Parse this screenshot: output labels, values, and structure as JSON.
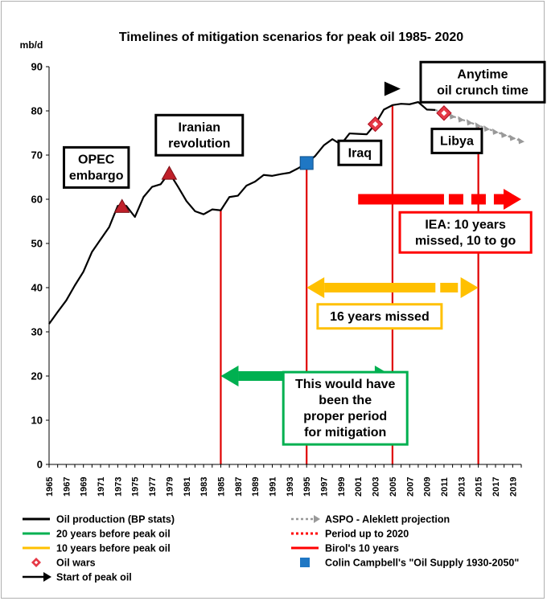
{
  "chart_data": {
    "type": "line",
    "title": "Timelines of mitigation scenarios for peak oil 1985- 2020",
    "ylabel": "mb/d",
    "xlabel": "",
    "ylim": [
      0,
      90
    ],
    "xlim": [
      1965,
      2020
    ],
    "y_ticks": [
      "0",
      "10",
      "20",
      "30",
      "40",
      "50",
      "60",
      "70",
      "80",
      "90"
    ],
    "x_ticks": [
      "1965",
      "1967",
      "1969",
      "1971",
      "1973",
      "1975",
      "1977",
      "1979",
      "1981",
      "1983",
      "1985",
      "1987",
      "1989",
      "1991",
      "1993",
      "1995",
      "1997",
      "1999",
      "2001",
      "2003",
      "2005",
      "2007",
      "2009",
      "2011",
      "2013",
      "2015",
      "2017",
      "2019"
    ],
    "grid": false,
    "series": [
      {
        "name": "Oil production (BP stats)",
        "color": "#000000",
        "x": [
          1965,
          1966,
          1967,
          1968,
          1969,
          1970,
          1971,
          1972,
          1973,
          1974,
          1975,
          1976,
          1977,
          1978,
          1979,
          1980,
          1981,
          1982,
          1983,
          1984,
          1985,
          1986,
          1987,
          1988,
          1989,
          1990,
          1991,
          1992,
          1993,
          1994,
          1995,
          1996,
          1997,
          1998,
          1999,
          2000,
          2001,
          2002,
          2003,
          2004,
          2005,
          2006,
          2007,
          2008,
          2009,
          2010
        ],
        "values": [
          31.8,
          34.5,
          37.1,
          40.5,
          43.6,
          48.1,
          50.9,
          53.7,
          58.5,
          58.5,
          56.0,
          60.5,
          62.8,
          63.4,
          66.0,
          62.9,
          59.6,
          57.3,
          56.6,
          57.7,
          57.5,
          60.5,
          60.8,
          63.1,
          64.0,
          65.5,
          65.3,
          65.7,
          66.0,
          67.0,
          68.2,
          69.8,
          72.2,
          73.6,
          72.4,
          74.9,
          74.8,
          74.7,
          77.0,
          80.3,
          81.3,
          81.6,
          81.5,
          82.0,
          80.3,
          80.2
        ]
      },
      {
        "name": "ASPO - Aleklett projection",
        "color": "#999999",
        "x": [
          2010,
          2011,
          2012,
          2013,
          2014,
          2015,
          2016,
          2017,
          2018,
          2019,
          2020
        ],
        "values": [
          80.2,
          79.5,
          78.8,
          78.1,
          77.4,
          76.7,
          76.0,
          75.3,
          74.6,
          73.9,
          73.2
        ]
      }
    ],
    "oil_wars": [
      {
        "x": 1973.5,
        "y": 58.3
      },
      {
        "x": 1979,
        "y": 65.8
      },
      {
        "x": 2003,
        "y": 77.0
      },
      {
        "x": 2011,
        "y": 79.5
      }
    ],
    "start_of_peak_oil": {
      "x": 2005,
      "y": 85
    },
    "colin_campbell": {
      "x": 1995,
      "y": 68.2
    },
    "vertical_lines": [
      1985,
      1995,
      2005,
      2015
    ],
    "arrows": [
      {
        "name": "20 years before peak oil",
        "color": "#00b050",
        "from": 1985,
        "to": 2005,
        "y": 20,
        "dashed_from": null
      },
      {
        "name": "10 years before peak oil",
        "color": "#ffc000",
        "from": 1995,
        "to": 2015,
        "y": 40,
        "dashed_from": 2010
      },
      {
        "name": "Birol's 10 years",
        "color": "#ff0000",
        "from": 2001,
        "to": 2020,
        "y": 60,
        "dashed_from": 2011
      }
    ],
    "annotations": [
      {
        "text": [
          "OPEC",
          "embargo"
        ],
        "x": 1970.5,
        "y": 67.2,
        "border": "#000000"
      },
      {
        "text": [
          "Iranian",
          "revolution"
        ],
        "x": 1982.5,
        "y": 74.5,
        "border": "#000000"
      },
      {
        "text": [
          "Iraq"
        ],
        "x": 2001.2,
        "y": 70.5,
        "border": "#000000"
      },
      {
        "text": [
          "Libya"
        ],
        "x": 2012.5,
        "y": 73.2,
        "border": "#000000"
      },
      {
        "text": [
          "Anytime",
          "oil crunch time"
        ],
        "x": 2015.5,
        "y": 86.5,
        "border": "#000000"
      },
      {
        "text": [
          "IEA: 10 years",
          "missed, 10 to go"
        ],
        "x": 2013.5,
        "y": 52.5,
        "border": "#ff0000"
      },
      {
        "text": [
          "16 years missed"
        ],
        "x": 2003.5,
        "y": 33.5,
        "border": "#ffc000"
      },
      {
        "text": [
          "This would have",
          "been the",
          "proper period",
          "for mitigation"
        ],
        "x": 1999.5,
        "y": 12.7,
        "border": "#00b050"
      }
    ],
    "legend": {
      "position": "bottom",
      "items": [
        {
          "label": "Oil production (BP stats)",
          "marker": "line",
          "color": "#000000"
        },
        {
          "label": "ASPO - Aleklett projection",
          "marker": "dotted-arrow",
          "color": "#999999"
        },
        {
          "label": "20 years before peak oil",
          "marker": "line",
          "color": "#00b050"
        },
        {
          "label": "Period up to 2020",
          "marker": "dotted",
          "color": "#ff0000"
        },
        {
          "label": "10 years before peak oil",
          "marker": "line",
          "color": "#ffc000"
        },
        {
          "label": "Birol's 10 years",
          "marker": "line",
          "color": "#ff0000"
        },
        {
          "label": "Oil wars",
          "marker": "diamond",
          "color": "#e63946"
        },
        {
          "label": "Colin Campbell's \"Oil Supply 1930-2050\"",
          "marker": "square",
          "color": "#1f77c4"
        },
        {
          "label": "Start of peak oil",
          "marker": "arrow",
          "color": "#000000"
        }
      ]
    }
  }
}
